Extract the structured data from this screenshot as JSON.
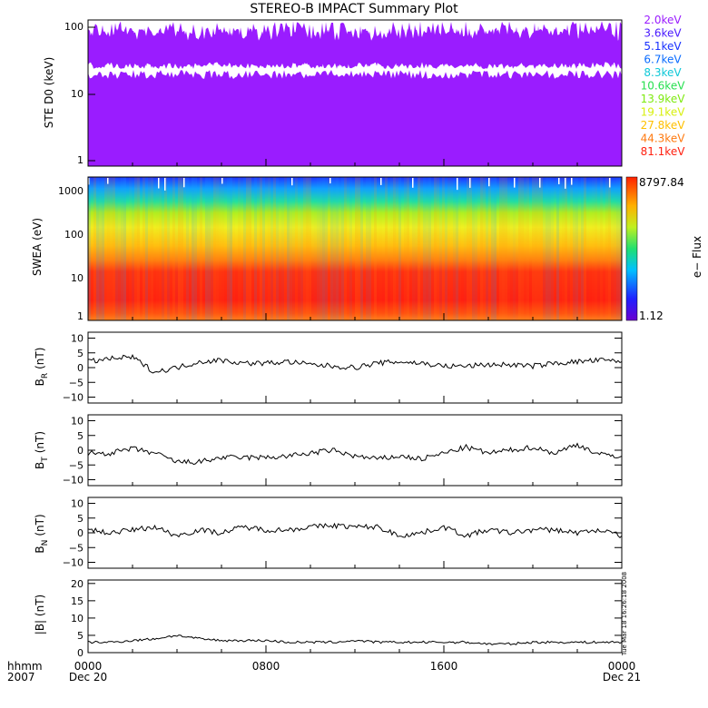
{
  "title": "STEREO-B IMPACT Summary Plot",
  "colors": {
    "ste_bands": [
      "#9a1cff",
      "#4b1cff",
      "#1830ff",
      "#0b6cff",
      "#10c8d8",
      "#28e050",
      "#7fea10",
      "#d8f010",
      "#ffc000",
      "#ff7a10",
      "#ff2010"
    ],
    "line": "#000000"
  },
  "x_axis": {
    "year_label": "2007",
    "format_label": "hhmm",
    "ticks": [
      {
        "hhmm": "0000",
        "date": "Dec 20"
      },
      {
        "hhmm": "0800",
        "date": ""
      },
      {
        "hhmm": "1600",
        "date": ""
      },
      {
        "hhmm": "0000",
        "date": "Dec 21"
      }
    ]
  },
  "side_stamp": "Tue Mar 18 16:26:18 2008",
  "chart_data": [
    {
      "id": "ste",
      "type": "line",
      "ylabel": "STE D0 (keV)",
      "yscale": "log",
      "ylim": [
        1,
        100
      ],
      "yticks": [
        "1",
        "10",
        "100"
      ],
      "legend_placement": "right",
      "series": [
        {
          "name": "2.0keV"
        },
        {
          "name": "3.6keV"
        },
        {
          "name": "5.1keV"
        },
        {
          "name": "6.7keV"
        },
        {
          "name": "8.3keV"
        },
        {
          "name": "10.6keV"
        },
        {
          "name": "13.9keV"
        },
        {
          "name": "19.1keV"
        },
        {
          "name": "27.8keV"
        },
        {
          "name": "44.3keV"
        },
        {
          "name": "81.1keV"
        }
      ]
    },
    {
      "id": "swea",
      "type": "heatmap",
      "ylabel": "SWEA (eV)",
      "yscale": "log",
      "ylim": [
        1,
        2000
      ],
      "yticks": [
        "1",
        "10",
        "100",
        "1000"
      ],
      "colorbar": {
        "label": "e− Flux",
        "max": "8797.84",
        "min": "1.12"
      }
    },
    {
      "id": "br",
      "type": "line",
      "ylabel": "B",
      "ylabel_sub": "R",
      "ylabel_unit": "(nT)",
      "ylim": [
        -12,
        12
      ],
      "yticks": [
        "10",
        "5",
        "0",
        "−5",
        "−10"
      ],
      "ytick_values": [
        10,
        5,
        0,
        -5,
        -10
      ],
      "x_hours": [
        0,
        1,
        2,
        3,
        4,
        5,
        6,
        7,
        8,
        9,
        10,
        11,
        12,
        13,
        14,
        15,
        16,
        17,
        18,
        19,
        20,
        21,
        22,
        23,
        24
      ],
      "values": [
        2,
        3,
        3.5,
        -1.5,
        0,
        2,
        2.5,
        1.5,
        1.5,
        2,
        1,
        0.5,
        0,
        1.5,
        2,
        1.5,
        0.5,
        0.5,
        1,
        1,
        0.5,
        1.5,
        2,
        2.5,
        2
      ]
    },
    {
      "id": "bt",
      "type": "line",
      "ylabel": "B",
      "ylabel_sub": "T",
      "ylabel_unit": "(nT)",
      "ylim": [
        -12,
        12
      ],
      "yticks": [
        "10",
        "5",
        "0",
        "−5",
        "−10"
      ],
      "ytick_values": [
        10,
        5,
        0,
        -5,
        -10
      ],
      "x_hours": [
        0,
        1,
        2,
        3,
        4,
        5,
        6,
        7,
        8,
        9,
        10,
        11,
        12,
        13,
        14,
        15,
        16,
        17,
        18,
        19,
        20,
        21,
        22,
        23,
        24
      ],
      "values": [
        -1,
        -1,
        0.5,
        -1,
        -4,
        -4,
        -2.5,
        -2.5,
        -2.5,
        -2,
        -1,
        0,
        -2,
        -3,
        -2,
        -3,
        -1,
        1,
        -1,
        0,
        1,
        -1,
        2,
        -1.5,
        -2
      ]
    },
    {
      "id": "bn",
      "type": "line",
      "ylabel": "B",
      "ylabel_sub": "N",
      "ylabel_unit": "(nT)",
      "ylim": [
        -12,
        12
      ],
      "yticks": [
        "10",
        "5",
        "0",
        "−5",
        "−10"
      ],
      "ytick_values": [
        10,
        5,
        0,
        -5,
        -10
      ],
      "x_hours": [
        0,
        1,
        2,
        3,
        4,
        5,
        6,
        7,
        8,
        9,
        10,
        11,
        12,
        13,
        14,
        15,
        16,
        17,
        18,
        19,
        20,
        21,
        22,
        23,
        24
      ],
      "values": [
        1,
        0,
        1,
        2,
        -1,
        1,
        0,
        2,
        1,
        1,
        2,
        2.5,
        2,
        2,
        -1,
        0,
        2,
        -1,
        1,
        0,
        1,
        1,
        0,
        1,
        -1
      ]
    },
    {
      "id": "bmag",
      "type": "line",
      "ylabel": "|B| (nT)",
      "ylim": [
        0,
        21
      ],
      "yticks": [
        "20",
        "15",
        "10",
        "5",
        "0"
      ],
      "ytick_values": [
        20,
        15,
        10,
        5,
        0
      ],
      "x_hours": [
        0,
        1,
        2,
        3,
        4,
        5,
        6,
        7,
        8,
        9,
        10,
        11,
        12,
        13,
        14,
        15,
        16,
        17,
        18,
        19,
        20,
        21,
        22,
        23,
        24
      ],
      "values": [
        3,
        3,
        3.5,
        4,
        5,
        4,
        3.5,
        3.5,
        3.5,
        3,
        3,
        3,
        3.5,
        3,
        3,
        3,
        3,
        3,
        2.5,
        2.5,
        3,
        3,
        3,
        3,
        3
      ]
    }
  ]
}
